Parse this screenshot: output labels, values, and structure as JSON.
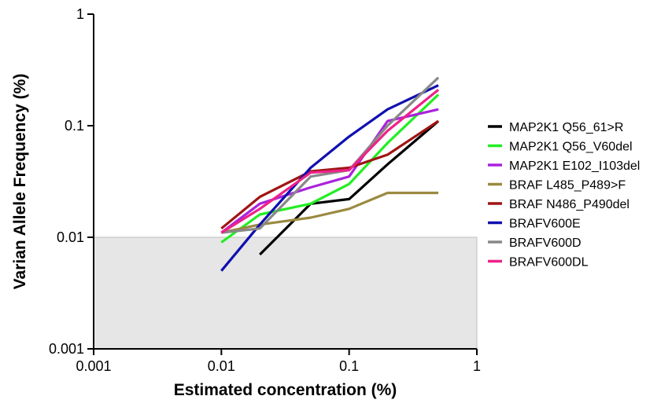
{
  "chart_data": {
    "type": "line",
    "title": "",
    "xlabel": "Estimated concentration (%)",
    "ylabel": "Varian Allele Frequency (%)",
    "x_scale": "log",
    "y_scale": "log",
    "xlim": [
      0.001,
      1
    ],
    "ylim": [
      0.001,
      1
    ],
    "x_ticks": [
      0.001,
      0.01,
      0.1,
      1
    ],
    "x_tick_labels": [
      "0.001",
      "0.01",
      "0.1",
      "1"
    ],
    "y_ticks": [
      0.001,
      0.01,
      0.1,
      1
    ],
    "y_tick_labels": [
      "0.001",
      "0.01",
      "0.1",
      "1"
    ],
    "grid": false,
    "legend_position": "right",
    "shaded_region": {
      "x": [
        0.001,
        1
      ],
      "y": [
        0.001,
        0.01
      ],
      "color": "#e6e6e6"
    },
    "series": [
      {
        "name": "MAP2K1 Q56_61>R",
        "color": "#000000",
        "x": [
          0.02,
          0.05,
          0.1,
          0.2,
          0.5
        ],
        "y": [
          0.007,
          0.02,
          0.022,
          0.045,
          0.11
        ]
      },
      {
        "name": "MAP2K1 Q56_V60del",
        "color": "#22ee22",
        "x": [
          0.01,
          0.02,
          0.05,
          0.1,
          0.2,
          0.5
        ],
        "y": [
          0.009,
          0.016,
          0.02,
          0.03,
          0.07,
          0.19
        ]
      },
      {
        "name": "MAP2K1 E102_I103del",
        "color": "#aa22dd",
        "x": [
          0.01,
          0.02,
          0.05,
          0.1,
          0.2,
          0.5
        ],
        "y": [
          0.011,
          0.02,
          0.028,
          0.035,
          0.11,
          0.14
        ]
      },
      {
        "name": "BRAF L485_P489>F",
        "color": "#9a8a40",
        "x": [
          0.01,
          0.02,
          0.05,
          0.1,
          0.2,
          0.5
        ],
        "y": [
          0.011,
          0.013,
          0.015,
          0.018,
          0.025,
          0.025
        ]
      },
      {
        "name": "BRAF N486_P490del",
        "color": "#a01414",
        "x": [
          0.01,
          0.02,
          0.05,
          0.1,
          0.2,
          0.5
        ],
        "y": [
          0.012,
          0.023,
          0.039,
          0.042,
          0.055,
          0.11
        ]
      },
      {
        "name": "BRAFV600E",
        "color": "#1010b0",
        "x": [
          0.01,
          0.02,
          0.05,
          0.1,
          0.2,
          0.5
        ],
        "y": [
          0.005,
          0.013,
          0.042,
          0.08,
          0.14,
          0.23
        ]
      },
      {
        "name": "BRAFV600D",
        "color": "#888888",
        "x": [
          0.01,
          0.02,
          0.05,
          0.1,
          0.2,
          0.5
        ],
        "y": [
          0.011,
          0.012,
          0.035,
          0.04,
          0.1,
          0.27
        ]
      },
      {
        "name": "BRAFV600DL",
        "color": "#ee2288",
        "x": [
          0.01,
          0.02,
          0.05,
          0.1,
          0.2,
          0.5
        ],
        "y": [
          0.011,
          0.018,
          0.038,
          0.04,
          0.09,
          0.21
        ]
      }
    ]
  }
}
